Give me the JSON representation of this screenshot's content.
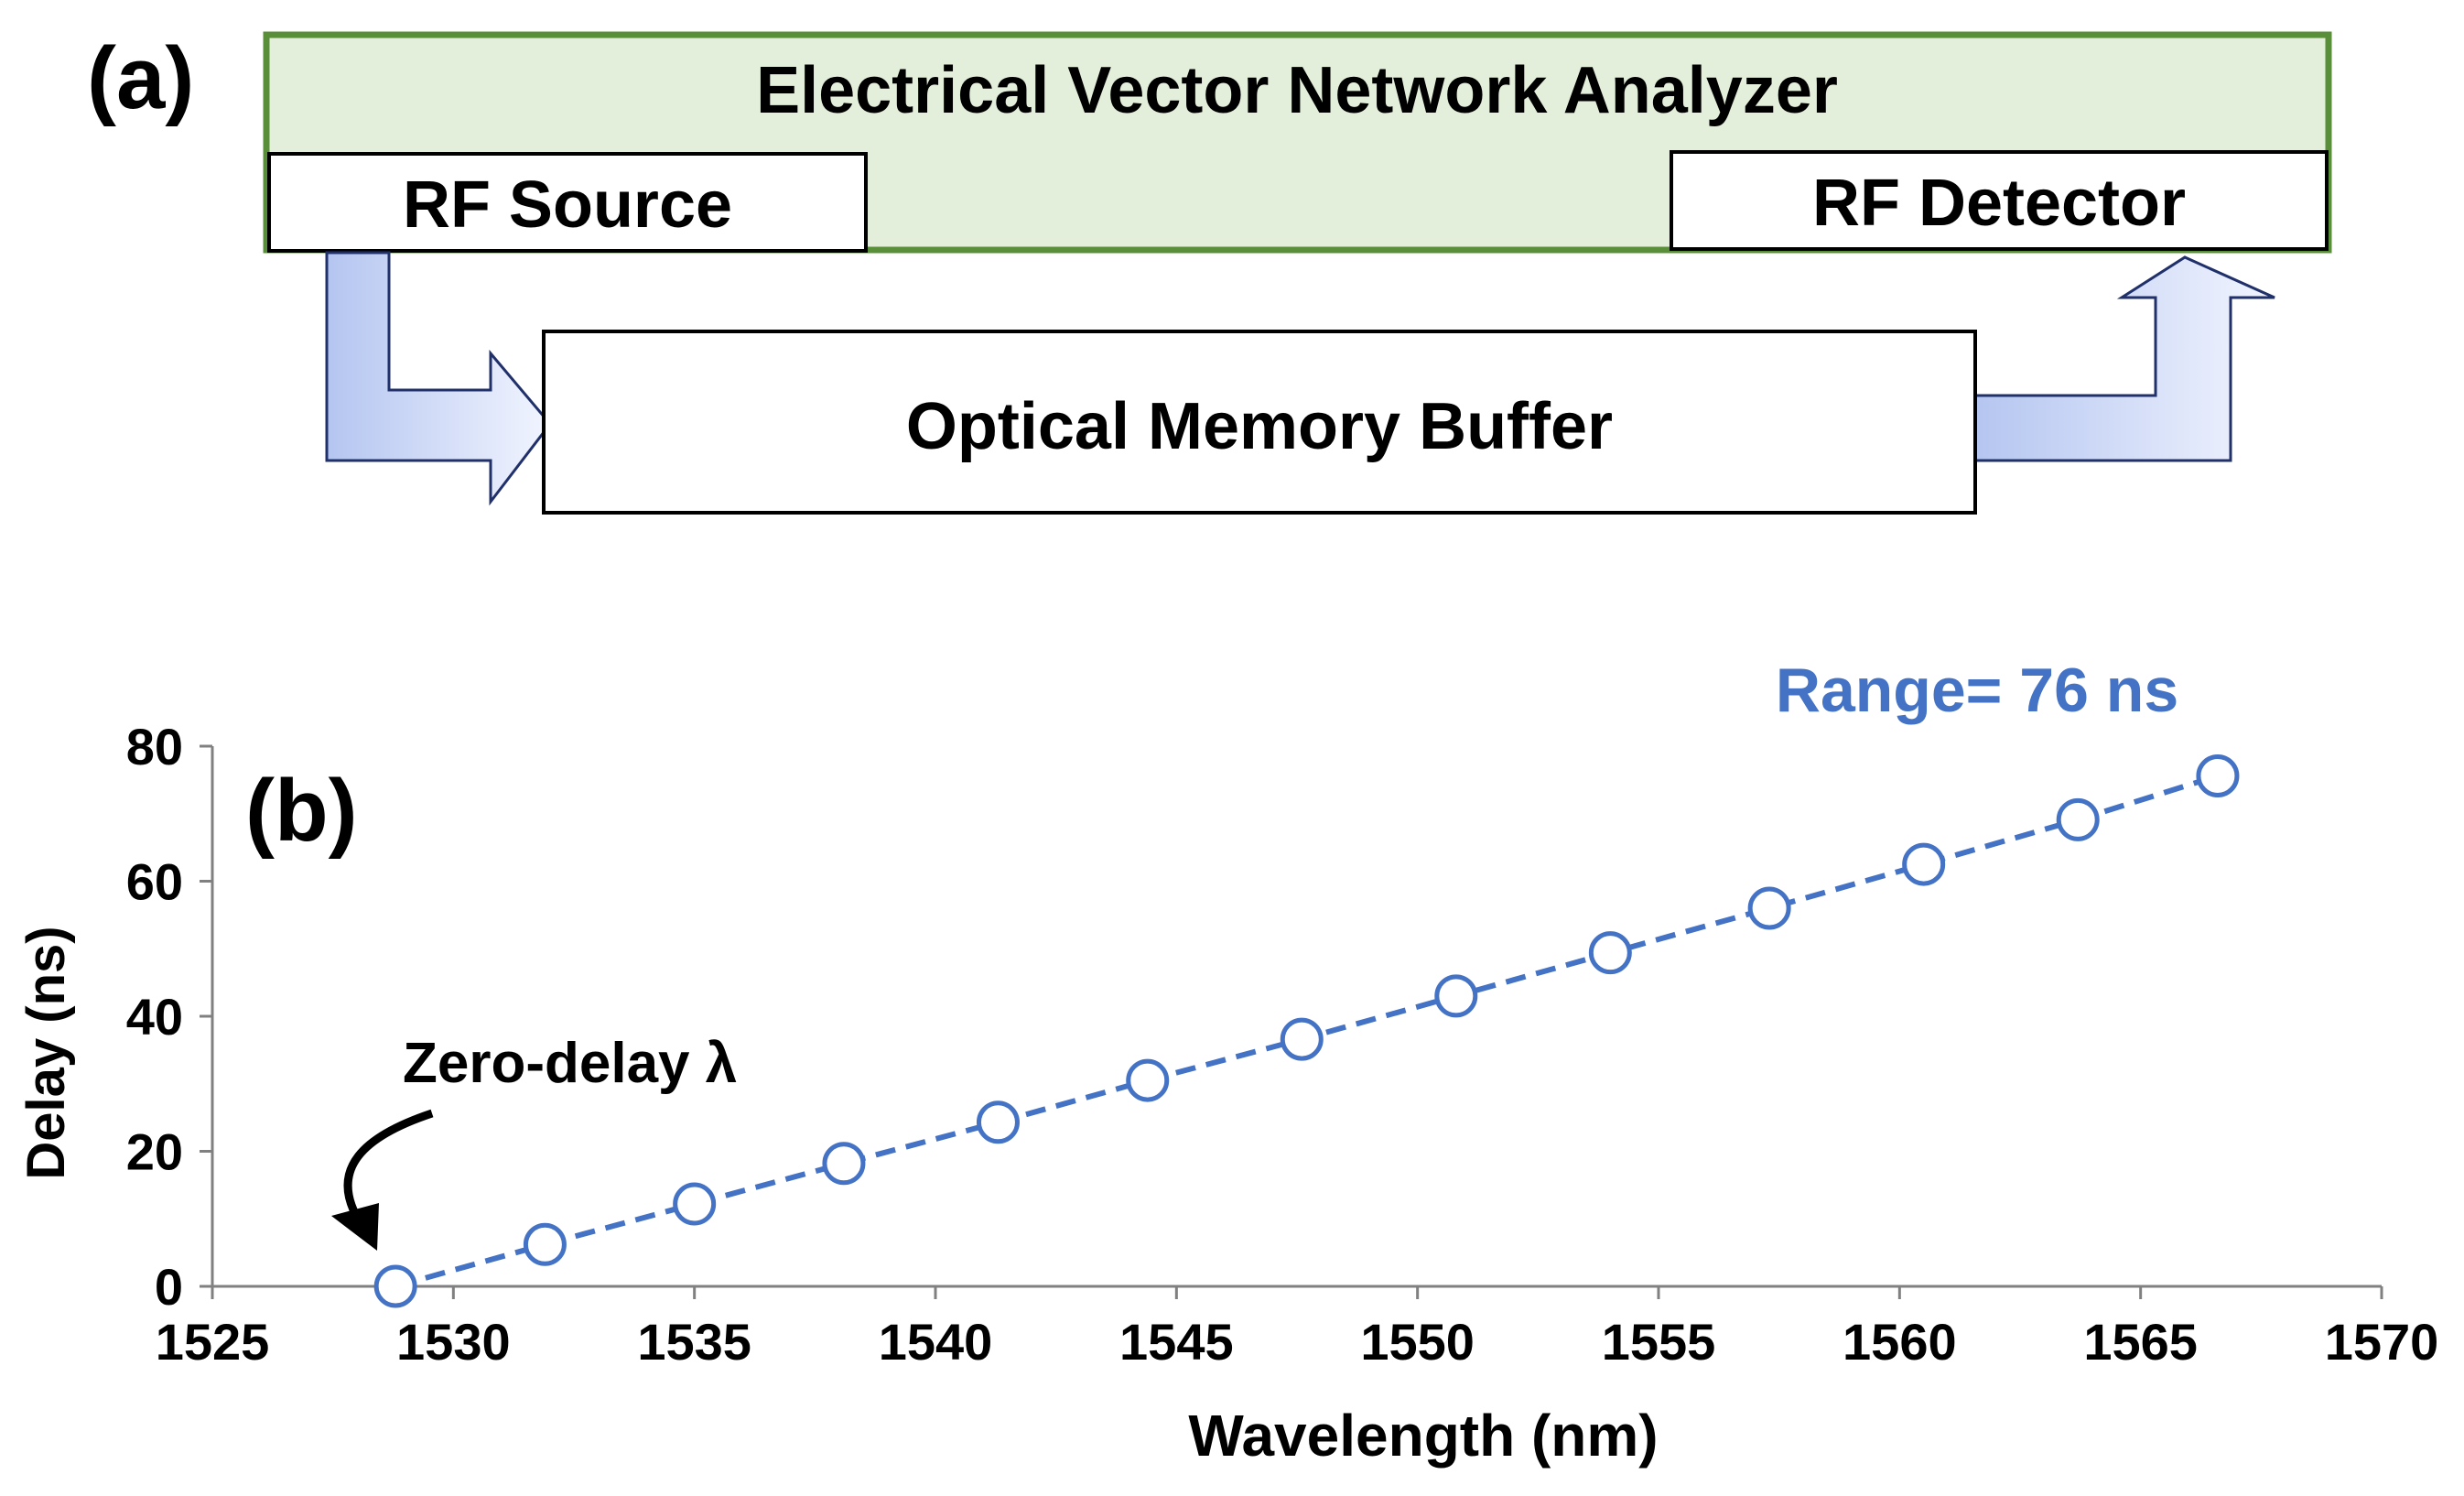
{
  "panel_a": {
    "label": "(a)",
    "vna_title": "Electrical Vector Network Analyzer",
    "rf_source": "RF Source",
    "rf_detector": "RF Detector",
    "buffer": "Optical Memory Buffer",
    "colors": {
      "vna_fill": "#e3efda",
      "vna_border": "#5a8f3a",
      "arrow_start": "#b4c5f0",
      "arrow_end": "#f2f5ff",
      "arrow_border": "#20306a"
    }
  },
  "panel_b": {
    "label": "(b)",
    "range_annotation": "Range= 76 ns",
    "zero_annotation": "Zero-delay λ",
    "colors": {
      "series": "#4472c4",
      "axis": "#808080",
      "text": "#000000"
    }
  },
  "chart_data": {
    "type": "scatter",
    "title": "",
    "xlabel": "Wavelength (nm)",
    "ylabel": "Delay (ns)",
    "xlim": [
      1525,
      1570
    ],
    "ylim": [
      0,
      80
    ],
    "xticks": [
      1525,
      1530,
      1535,
      1540,
      1545,
      1550,
      1555,
      1560,
      1565,
      1570
    ],
    "yticks": [
      0,
      20,
      40,
      60,
      80
    ],
    "grid": false,
    "marker": "open-circle",
    "line_style": "dashed",
    "series": [
      {
        "x": [
          1528.8,
          1531.9,
          1535.0,
          1538.1,
          1541.3,
          1544.4,
          1547.6,
          1550.8,
          1554.0,
          1557.3,
          1560.5,
          1563.7,
          1566.6
        ],
        "y": [
          0,
          6.2,
          12.2,
          18.2,
          24.3,
          30.5,
          36.6,
          43.0,
          49.4,
          56.0,
          62.5,
          69.1,
          75.6
        ]
      }
    ]
  }
}
